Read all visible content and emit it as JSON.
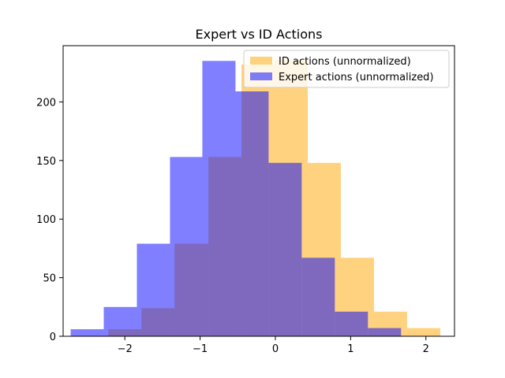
{
  "chart_data": {
    "type": "bar",
    "title": "Expert vs ID Actions",
    "xlabel": "",
    "ylabel": "",
    "xlim": [
      -2.82,
      2.38
    ],
    "ylim": [
      0,
      248
    ],
    "xticks": [
      -2,
      -1,
      0,
      1,
      2
    ],
    "yticks": [
      0,
      50,
      100,
      150,
      200
    ],
    "legend_position": "top-right",
    "grid": false,
    "series": [
      {
        "name": "ID actions (unnormalized)",
        "color": "#ffa500",
        "opacity": 0.5,
        "bin_edges": [
          -2.22,
          -1.78,
          -1.34,
          -0.89,
          -0.45,
          -0.01,
          0.43,
          0.87,
          1.31,
          1.75,
          2.19
        ],
        "counts": [
          6,
          24,
          79,
          153,
          232,
          236,
          148,
          67,
          21,
          7
        ]
      },
      {
        "name": "Expert actions (unnormalized)",
        "color": "#0000ff",
        "opacity": 0.5,
        "bin_edges": [
          -2.72,
          -2.28,
          -1.84,
          -1.4,
          -0.97,
          -0.53,
          -0.09,
          0.35,
          0.79,
          1.23,
          1.67
        ],
        "counts": [
          6,
          25,
          79,
          153,
          235,
          209,
          148,
          67,
          21,
          7
        ]
      }
    ]
  }
}
